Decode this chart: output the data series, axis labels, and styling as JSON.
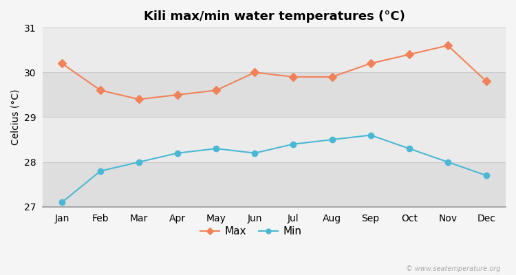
{
  "title": "Kili max/min water temperatures (°C)",
  "ylabel": "Celcius (°C)",
  "months": [
    "Jan",
    "Feb",
    "Mar",
    "Apr",
    "May",
    "Jun",
    "Jul",
    "Aug",
    "Sep",
    "Oct",
    "Nov",
    "Dec"
  ],
  "max_values": [
    30.2,
    29.6,
    29.4,
    29.5,
    29.6,
    30.0,
    29.9,
    29.9,
    30.2,
    30.4,
    30.6,
    29.8
  ],
  "min_values": [
    27.1,
    27.8,
    28.0,
    28.2,
    28.3,
    28.2,
    28.4,
    28.5,
    28.6,
    28.3,
    28.0,
    27.7
  ],
  "max_color": "#f28157",
  "min_color": "#4ab8d4",
  "max_marker": "D",
  "min_marker": "o",
  "ylim": [
    27.0,
    31.0
  ],
  "yticks": [
    27,
    28,
    29,
    30,
    31
  ],
  "fig_bg_color": "#f5f5f5",
  "band_light": "#ebebeb",
  "band_dark": "#dedede",
  "grid_color": "#cccccc",
  "watermark": "© www.seatemperature.org",
  "title_fontsize": 13,
  "axis_label_fontsize": 10,
  "tick_fontsize": 10,
  "legend_labels": [
    "Max",
    "Min"
  ]
}
